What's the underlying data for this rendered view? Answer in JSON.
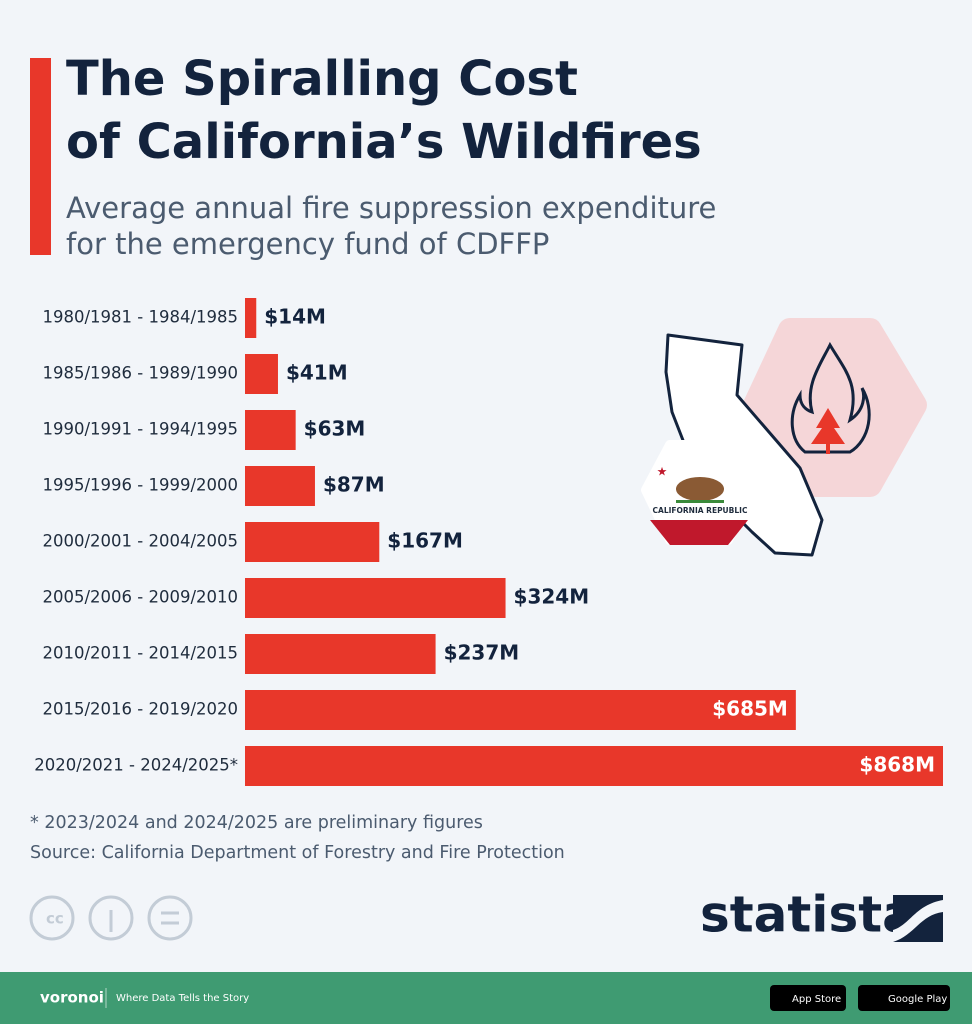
{
  "chart_data": {
    "type": "bar",
    "orientation": "horizontal",
    "title": [
      "The Spiralling Cost",
      "of California’s Wildfires"
    ],
    "subtitle": [
      "Average annual fire suppression expenditure",
      "for the emergency fund of CDFFP"
    ],
    "categories": [
      "1980/1981 - 1984/1985",
      "1985/1986 - 1989/1990",
      "1990/1991 - 1994/1995",
      "1995/1996 - 1999/2000",
      "2000/2001 - 2004/2005",
      "2005/2006 - 2009/2010",
      "2010/2011 - 2014/2015",
      "2015/2016 - 2019/2020",
      "2020/2021 - 2024/2025*"
    ],
    "values": [
      14,
      41,
      63,
      87,
      167,
      324,
      237,
      685,
      868
    ],
    "value_labels": [
      "$14M",
      "$41M",
      "$63M",
      "$87M",
      "$167M",
      "$324M",
      "$237M",
      "$685M",
      "$868M"
    ],
    "color": "#e8372a",
    "footnote": "* 2023/2024 and 2024/2025 are preliminary figures",
    "source": "Source: California Department of Forestry and Fire Protection"
  },
  "branding": {
    "publisher": "statista",
    "partner": "voronoi",
    "tagline": "Where Data Tells the Story",
    "app_store": "App Store",
    "google_play": "Google Play",
    "flag_text": "CALIFORNIA REPUBLIC"
  }
}
